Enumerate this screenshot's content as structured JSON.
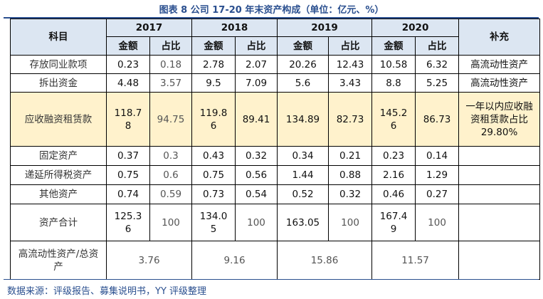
{
  "title": "图表 8 公司 17-20 年末资产构成（单位：亿元、%）",
  "header": {
    "subject": "科目",
    "years": [
      "2017",
      "2018",
      "2019",
      "2020"
    ],
    "amount": "金额",
    "ratio": "占比",
    "note": "补充"
  },
  "rows": [
    {
      "name": "存放同业款项",
      "v": [
        "0.23",
        "0.18",
        "2.78",
        "2.07",
        "20.26",
        "12.43",
        "10.58",
        "6.32"
      ],
      "note": "高流动性资产"
    },
    {
      "name": "拆出资金",
      "v": [
        "4.48",
        "3.57",
        "9.5",
        "7.09",
        "5.6",
        "3.43",
        "8.8",
        "5.25"
      ],
      "note": "高流动性资产"
    },
    {
      "name": "应收融资租赁款",
      "v": [
        "118.78",
        "94.75",
        "119.86",
        "89.41",
        "134.89",
        "82.73",
        "145.26",
        "86.73"
      ],
      "note": "一年以内应收融资租赁款占比 29.80%"
    },
    {
      "name": "固定资产",
      "v": [
        "0.37",
        "0.3",
        "0.43",
        "0.32",
        "0.34",
        "0.21",
        "0.23",
        "0.14"
      ],
      "note": ""
    },
    {
      "name": "递延所得税资产",
      "v": [
        "0.75",
        "0.6",
        "0.75",
        "0.56",
        "1.44",
        "0.88",
        "2.16",
        "1.29"
      ],
      "note": ""
    },
    {
      "name": "其他资产",
      "v": [
        "0.74",
        "0.59",
        "0.73",
        "0.54",
        "0.52",
        "0.32",
        "0.46",
        "0.27"
      ],
      "note": ""
    },
    {
      "name": "资产合计",
      "v": [
        "125.36",
        "100",
        "134.05",
        "100",
        "163.05",
        "100",
        "167.49",
        "100"
      ],
      "note": ""
    }
  ],
  "ratio_row": {
    "name": "高流动性资产/总资产",
    "v": [
      "3.76",
      "9.16",
      "15.86",
      "11.57"
    ],
    "note": ""
  },
  "source": "数据来源：评级报告、募集说明书，YY 评级整理",
  "colors": {
    "header_bg": "#dce6f2",
    "highlight_bg": "#fff2cc",
    "title": "#2a4f8f"
  }
}
